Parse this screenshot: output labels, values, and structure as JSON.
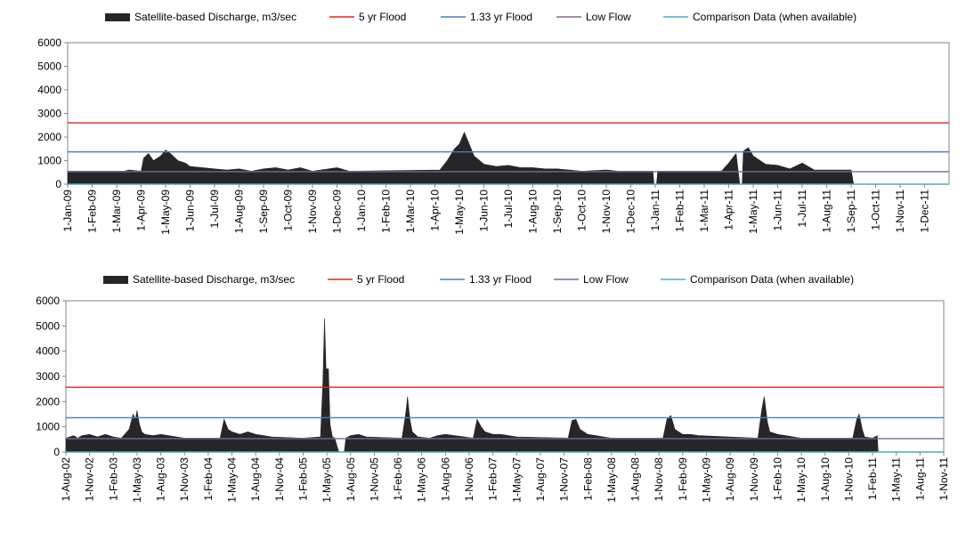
{
  "chart_data": [
    {
      "type": "area",
      "legend": {
        "placement": "top",
        "entries": [
          {
            "label": "Satellite-based Discharge, m3/sec",
            "color": "#262626",
            "kind": "area"
          },
          {
            "label": "5 yr Flood",
            "color": "#e8231e",
            "kind": "line"
          },
          {
            "label": "1.33 yr Flood",
            "color": "#4a7ebb",
            "kind": "line"
          },
          {
            "label": "Low Flow",
            "color": "#8064a2",
            "kind": "line"
          },
          {
            "label": "Comparison Data (when available)",
            "color": "#4bacc6",
            "kind": "line"
          }
        ]
      },
      "ylim": [
        0,
        6000
      ],
      "yticks": [
        "0",
        "1000",
        "2000",
        "3000",
        "4000",
        "5000",
        "6000"
      ],
      "xticks": [
        "1-Jan-09",
        "1-Feb-09",
        "1-Mar-09",
        "1-Apr-09",
        "1-May-09",
        "1-Jun-09",
        "1-Jul-09",
        "1-Aug-09",
        "1-Sep-09",
        "1-Oct-09",
        "1-Nov-09",
        "1-Dec-09",
        "1-Jan-10",
        "1-Feb-10",
        "1-Mar-10",
        "1-Apr-10",
        "1-May-10",
        "1-Jun-10",
        "1-Jul-10",
        "1-Aug-10",
        "1-Sep-10",
        "1-Oct-10",
        "1-Nov-10",
        "1-Dec-10",
        "1-Jan-11",
        "1-Feb-11",
        "1-Mar-11",
        "1-Apr-11",
        "1-May-11",
        "1-Jun-11",
        "1-Jul-11",
        "1-Aug-11",
        "1-Sep-11",
        "1-Oct-11",
        "1-Nov-11",
        "1-Dec-11"
      ],
      "reference_lines": {
        "5 yr Flood": 2600,
        "1.33 yr Flood": 1370,
        "Low Flow": 530
      },
      "discharge_series": {
        "name": "Satellite-based Discharge, m3/sec",
        "x_unit": "months since 1-Jan-09",
        "points": [
          [
            0,
            550
          ],
          [
            2.3,
            550
          ],
          [
            2.5,
            600
          ],
          [
            3.0,
            550
          ],
          [
            3.1,
            1100
          ],
          [
            3.3,
            1300
          ],
          [
            3.5,
            1000
          ],
          [
            3.8,
            1200
          ],
          [
            4.0,
            1450
          ],
          [
            4.2,
            1300
          ],
          [
            4.5,
            1000
          ],
          [
            4.8,
            900
          ],
          [
            5.0,
            750
          ],
          [
            5.5,
            700
          ],
          [
            6.0,
            650
          ],
          [
            6.5,
            600
          ],
          [
            7.0,
            650
          ],
          [
            7.5,
            550
          ],
          [
            8.0,
            650
          ],
          [
            8.5,
            700
          ],
          [
            9.0,
            600
          ],
          [
            9.5,
            700
          ],
          [
            10.0,
            550
          ],
          [
            11.0,
            700
          ],
          [
            11.5,
            550
          ],
          [
            15.2,
            600
          ],
          [
            15.5,
            1000
          ],
          [
            15.8,
            1500
          ],
          [
            16.0,
            1700
          ],
          [
            16.2,
            2200
          ],
          [
            16.4,
            1700
          ],
          [
            16.6,
            1200
          ],
          [
            17.0,
            850
          ],
          [
            17.5,
            750
          ],
          [
            18.0,
            800
          ],
          [
            18.5,
            700
          ],
          [
            19.0,
            700
          ],
          [
            19.5,
            650
          ],
          [
            20.0,
            650
          ],
          [
            20.5,
            600
          ],
          [
            21.0,
            550
          ],
          [
            22.0,
            600
          ],
          [
            22.5,
            550
          ],
          [
            23.9,
            550
          ],
          [
            23.95,
            0
          ],
          [
            24.05,
            0
          ],
          [
            24.1,
            550
          ],
          [
            26.7,
            550
          ],
          [
            27.0,
            900
          ],
          [
            27.3,
            1300
          ],
          [
            27.45,
            0
          ],
          [
            27.55,
            0
          ],
          [
            27.6,
            1400
          ],
          [
            27.8,
            1550
          ],
          [
            28.0,
            1200
          ],
          [
            28.5,
            850
          ],
          [
            29.0,
            800
          ],
          [
            29.5,
            650
          ],
          [
            30.0,
            900
          ],
          [
            30.5,
            600
          ],
          [
            31.0,
            600
          ],
          [
            32.0,
            600
          ],
          [
            32.1,
            0
          ]
        ]
      },
      "comparison_series": {
        "name": "Comparison Data (when available)",
        "points": [
          [
            0,
            0
          ],
          [
            36.0,
            0
          ]
        ]
      },
      "xlim_months": [
        0,
        36.0
      ]
    },
    {
      "type": "area",
      "legend": {
        "placement": "top",
        "entries": [
          {
            "label": "Satellite-based Discharge, m3/sec",
            "color": "#262626",
            "kind": "area"
          },
          {
            "label": "5 yr Flood",
            "color": "#e8231e",
            "kind": "line"
          },
          {
            "label": "1.33 yr Flood",
            "color": "#4a7ebb",
            "kind": "line"
          },
          {
            "label": "Low Flow",
            "color": "#8064a2",
            "kind": "line"
          },
          {
            "label": "Comparison Data (when available)",
            "color": "#4bacc6",
            "kind": "line"
          }
        ]
      },
      "ylim": [
        0,
        6000
      ],
      "yticks": [
        "0",
        "1000",
        "2000",
        "3000",
        "4000",
        "5000",
        "6000"
      ],
      "xticks": [
        "1-Aug-02",
        "1-Nov-02",
        "1-Feb-03",
        "1-May-03",
        "1-Aug-03",
        "1-Nov-03",
        "1-Feb-04",
        "1-May-04",
        "1-Aug-04",
        "1-Nov-04",
        "1-Feb-05",
        "1-May-05",
        "1-Aug-05",
        "1-Nov-05",
        "1-Feb-06",
        "1-May-06",
        "1-Aug-06",
        "1-Nov-06",
        "1-Feb-07",
        "1-May-07",
        "1-Aug-07",
        "1-Nov-07",
        "1-Feb-08",
        "1-May-08",
        "1-Aug-08",
        "1-Nov-08",
        "1-Feb-09",
        "1-May-09",
        "1-Aug-09",
        "1-Nov-09",
        "1-Feb-10",
        "1-May-10",
        "1-Aug-10",
        "1-Nov-10",
        "1-Feb-11",
        "1-May-11",
        "1-Aug-11",
        "1-Nov-11"
      ],
      "reference_lines": {
        "5 yr Flood": 2570,
        "1.33 yr Flood": 1360,
        "Low Flow": 530
      },
      "discharge_series": {
        "name": "Satellite-based Discharge, m3/sec",
        "x_unit": "months since 1-Aug-02",
        "points": [
          [
            0,
            550
          ],
          [
            1.0,
            650
          ],
          [
            1.5,
            550
          ],
          [
            2.0,
            650
          ],
          [
            3.0,
            700
          ],
          [
            4.0,
            600
          ],
          [
            5.0,
            700
          ],
          [
            6.0,
            600
          ],
          [
            7.0,
            550
          ],
          [
            8.0,
            900
          ],
          [
            8.5,
            1500
          ],
          [
            8.8,
            1300
          ],
          [
            9.0,
            1650
          ],
          [
            9.3,
            1100
          ],
          [
            9.6,
            800
          ],
          [
            10.0,
            700
          ],
          [
            11.0,
            650
          ],
          [
            12.0,
            700
          ],
          [
            13.0,
            650
          ],
          [
            14.0,
            600
          ],
          [
            15.0,
            550
          ],
          [
            19.5,
            550
          ],
          [
            20.0,
            1300
          ],
          [
            20.5,
            900
          ],
          [
            21.0,
            800
          ],
          [
            22.0,
            700
          ],
          [
            23.0,
            800
          ],
          [
            24.0,
            700
          ],
          [
            25.0,
            650
          ],
          [
            26.0,
            600
          ],
          [
            30.0,
            550
          ],
          [
            32.2,
            600
          ],
          [
            32.5,
            2800
          ],
          [
            32.7,
            5300
          ],
          [
            32.9,
            3300
          ],
          [
            33.2,
            3300
          ],
          [
            33.4,
            1100
          ],
          [
            33.7,
            600
          ],
          [
            34.0,
            550
          ],
          [
            34.5,
            0
          ],
          [
            35.2,
            0
          ],
          [
            35.4,
            550
          ],
          [
            36.0,
            650
          ],
          [
            37.0,
            700
          ],
          [
            38.0,
            600
          ],
          [
            42.5,
            550
          ],
          [
            43.0,
            1600
          ],
          [
            43.2,
            2200
          ],
          [
            43.5,
            1300
          ],
          [
            43.8,
            800
          ],
          [
            44.5,
            600
          ],
          [
            46.0,
            550
          ],
          [
            47.0,
            650
          ],
          [
            48.0,
            700
          ],
          [
            51.5,
            550
          ],
          [
            52.0,
            1300
          ],
          [
            52.5,
            1000
          ],
          [
            53.0,
            800
          ],
          [
            54.0,
            700
          ],
          [
            55.0,
            700
          ],
          [
            56.0,
            650
          ],
          [
            57.0,
            600
          ],
          [
            63.5,
            550
          ],
          [
            64.0,
            1250
          ],
          [
            64.5,
            1300
          ],
          [
            65.0,
            900
          ],
          [
            66.0,
            700
          ],
          [
            67.0,
            650
          ],
          [
            68.0,
            600
          ],
          [
            69.0,
            550
          ],
          [
            75.5,
            550
          ],
          [
            76.0,
            1300
          ],
          [
            76.5,
            1450
          ],
          [
            77.0,
            900
          ],
          [
            78.0,
            700
          ],
          [
            79.0,
            700
          ],
          [
            80.0,
            650
          ],
          [
            87.5,
            550
          ],
          [
            88.0,
            1700
          ],
          [
            88.3,
            2200
          ],
          [
            88.7,
            1200
          ],
          [
            89.0,
            800
          ],
          [
            90.0,
            700
          ],
          [
            91.0,
            650
          ],
          [
            92.0,
            600
          ],
          [
            93.0,
            550
          ],
          [
            99.5,
            550
          ],
          [
            100.0,
            1300
          ],
          [
            100.3,
            1500
          ],
          [
            100.7,
            900
          ],
          [
            101.0,
            600
          ],
          [
            102.0,
            550
          ],
          [
            102.6,
            650
          ],
          [
            102.7,
            0
          ]
        ]
      },
      "comparison_series": {
        "name": "Comparison Data (when available)",
        "points": [
          [
            0,
            0
          ],
          [
            111.0,
            0
          ]
        ]
      },
      "xlim_months": [
        0,
        111.0
      ]
    }
  ]
}
